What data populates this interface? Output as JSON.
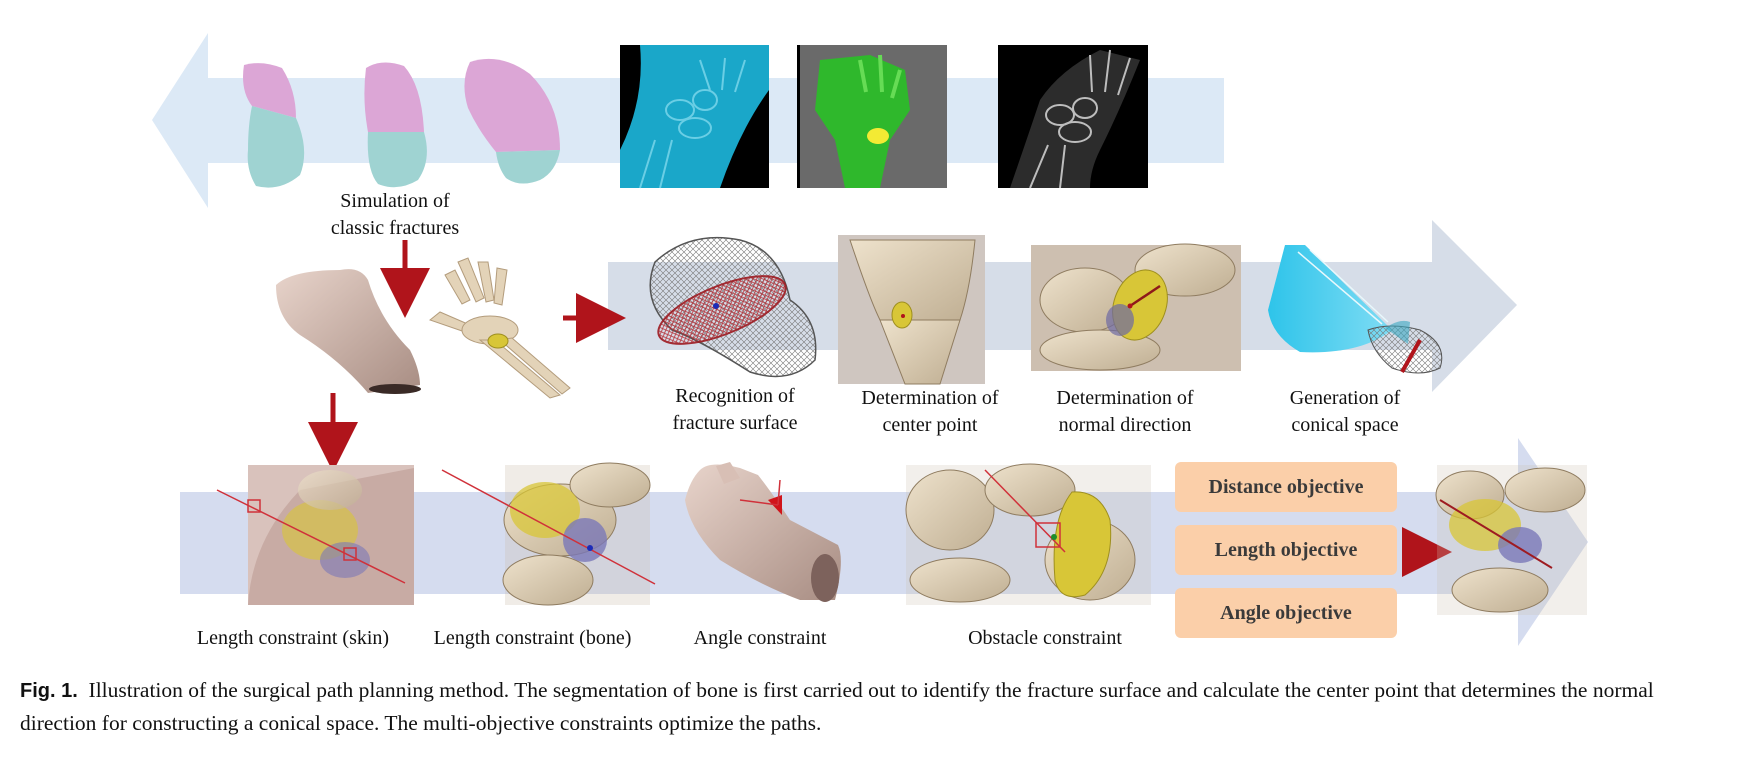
{
  "labels": {
    "simulation": [
      "Simulation of",
      "classic fractures"
    ],
    "recognition": [
      "Recognition of",
      "fracture surface"
    ],
    "center": [
      "Determination of",
      "center point"
    ],
    "normal": [
      "Determination of",
      "normal direction"
    ],
    "conical": [
      "Generation of",
      "conical space"
    ],
    "len_skin": "Length constraint (skin)",
    "len_bone": "Length constraint (bone)",
    "angle": "Angle constraint",
    "obstacle": "Obstacle constraint"
  },
  "objectives": [
    "Distance objective",
    "Length objective",
    "Angle objective"
  ],
  "caption": {
    "label": "Fig. 1.",
    "text": "Illustration of the surgical path planning method. The segmentation of bone is first carried out to identify the fracture surface and calculate the center point that determines the normal direction for constructing a conical space. The multi-objective constraints optimize the paths."
  },
  "colors": {
    "band_top": "#dce9f6",
    "band_mid": "#d6dde8",
    "band_bottom": "#d5dcef",
    "arrow_red": "#b0141b",
    "objective_box": "#fbcfa9",
    "bone": "#e3d3b8",
    "fragment_pink": "#dca6d6",
    "fragment_teal": "#9fd3d2",
    "ct_cyan": "#1aa7c9",
    "ct_green": "#2fb82c",
    "cone_cyan": "#2ec4ea",
    "yellow_fragment": "#d8c637"
  }
}
